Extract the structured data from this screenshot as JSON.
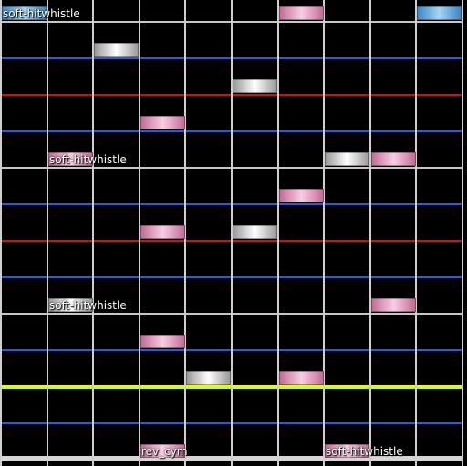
{
  "chart": {
    "columns": 10,
    "notes": [
      {
        "lane": 0,
        "row": 1,
        "color": "blue",
        "label": "soft-hitwhistle"
      },
      {
        "lane": 6,
        "row": 1,
        "color": "pink"
      },
      {
        "lane": 9,
        "row": 1,
        "color": "blue"
      },
      {
        "lane": 2,
        "row": 4,
        "color": "white"
      },
      {
        "lane": 5,
        "row": 7,
        "color": "white"
      },
      {
        "lane": 3,
        "row": 10,
        "color": "pink"
      },
      {
        "lane": 1,
        "row": 13,
        "color": "pink",
        "label": "soft-hitwhistle"
      },
      {
        "lane": 7,
        "row": 13,
        "color": "white"
      },
      {
        "lane": 8,
        "row": 13,
        "color": "pink"
      },
      {
        "lane": 6,
        "row": 16,
        "color": "pink"
      },
      {
        "lane": 3,
        "row": 19,
        "color": "pink"
      },
      {
        "lane": 5,
        "row": 19,
        "color": "white"
      },
      {
        "lane": 1,
        "row": 25,
        "color": "white",
        "label": "soft-hitwhistle"
      },
      {
        "lane": 8,
        "row": 25,
        "color": "pink"
      },
      {
        "lane": 3,
        "row": 28,
        "color": "pink"
      },
      {
        "lane": 4,
        "row": 31,
        "color": "white"
      },
      {
        "lane": 6,
        "row": 31,
        "color": "pink"
      },
      {
        "lane": 3,
        "row": 37,
        "color": "pink",
        "label": "rev_cym"
      },
      {
        "lane": 7,
        "row": 37,
        "color": "pink",
        "label": "soft-hitwhistle"
      }
    ]
  }
}
